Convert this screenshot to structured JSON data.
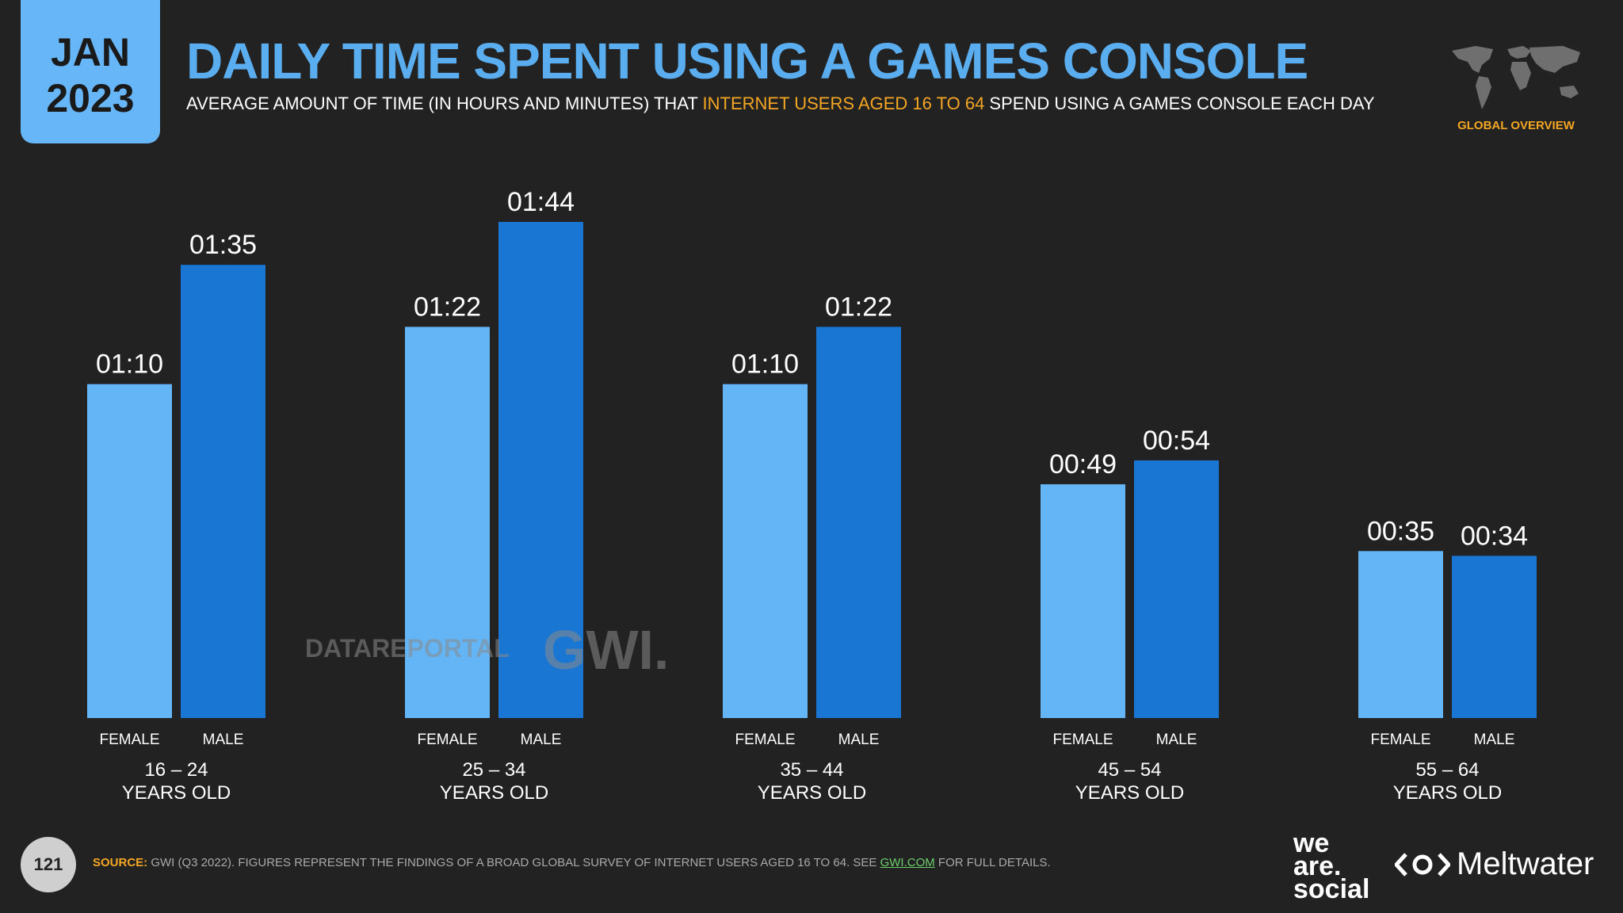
{
  "header": {
    "date_month": "JAN",
    "date_year": "2023",
    "title": "DAILY TIME SPENT USING A GAMES CONSOLE",
    "subtitle_part1": "AVERAGE AMOUNT OF TIME (IN HOURS AND MINUTES) THAT ",
    "subtitle_highlight": "INTERNET USERS AGED 16 TO 64",
    "subtitle_part2": " SPEND USING A GAMES CONSOLE EACH DAY",
    "region_label": "GLOBAL OVERVIEW"
  },
  "watermarks": {
    "datareportal": "DATAREPORTAL",
    "gwi": "GWI."
  },
  "footer": {
    "page_number": "121",
    "source_label": "SOURCE:",
    "source_text": " GWI (Q3 2022). FIGURES REPRESENT THE FINDINGS OF A BROAD GLOBAL SURVEY OF INTERNET USERS AGED 16 TO 64. SEE ",
    "source_link": "GWI.COM",
    "source_end": " FOR FULL DETAILS.",
    "brand_line1": "we",
    "brand_line2": "are.",
    "brand_line3": "social",
    "brand_meltwater": "Meltwater"
  },
  "colors": {
    "female": "#64b5f6",
    "male": "#1976d2",
    "accent": "#f5a623",
    "title": "#5aaef0"
  },
  "chart_data": {
    "type": "bar",
    "title": "DAILY TIME SPENT USING A GAMES CONSOLE",
    "unit": "minutes",
    "categories": [
      {
        "line1": "16 – 24",
        "line2": "YEARS OLD"
      },
      {
        "line1": "25 – 34",
        "line2": "YEARS OLD"
      },
      {
        "line1": "35 – 44",
        "line2": "YEARS OLD"
      },
      {
        "line1": "45 – 54",
        "line2": "YEARS OLD"
      },
      {
        "line1": "55 – 64",
        "line2": "YEARS OLD"
      }
    ],
    "series": [
      {
        "name": "FEMALE",
        "values": [
          70,
          82,
          70,
          49,
          35
        ],
        "labels": [
          "01:10",
          "01:22",
          "01:10",
          "00:49",
          "00:35"
        ]
      },
      {
        "name": "MALE",
        "values": [
          95,
          104,
          82,
          54,
          34
        ],
        "labels": [
          "01:35",
          "01:44",
          "01:22",
          "00:54",
          "00:34"
        ]
      }
    ],
    "ylim": [
      0,
      104
    ]
  }
}
